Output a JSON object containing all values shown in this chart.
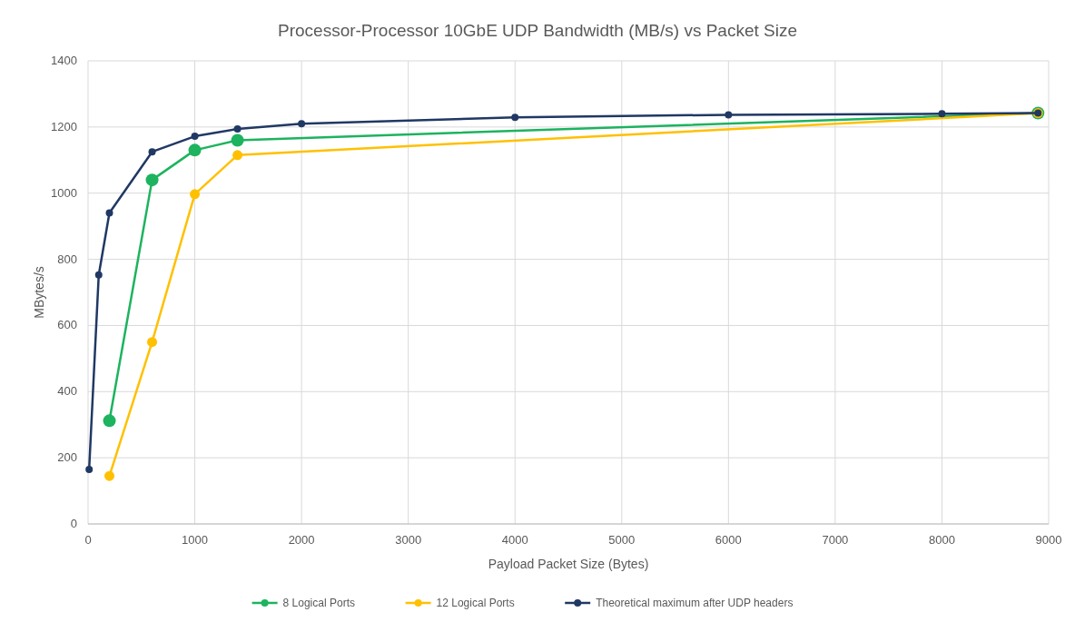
{
  "chart_data": {
    "type": "line",
    "title": "Processor-Processor  10GbE UDP Bandwidth (MB/s) vs Packet Size",
    "xlabel": "Payload Packet Size (Bytes)",
    "ylabel": "MBytes/s",
    "xlim": [
      0,
      9000
    ],
    "xticks": [
      0,
      1000,
      2000,
      3000,
      4000,
      5000,
      6000,
      7000,
      8000,
      9000
    ],
    "ylim": [
      0,
      1400
    ],
    "yticks": [
      0,
      200,
      400,
      600,
      800,
      1000,
      1200,
      1400
    ],
    "grid": true,
    "legend": "bottom",
    "marker": "circle",
    "line_style": "solid",
    "series": [
      {
        "name": "8 Logical Ports",
        "color": "#1db35f",
        "x": [
          200,
          600,
          1000,
          1400,
          8900
        ],
        "values": [
          312,
          1040,
          1130,
          1160,
          1242
        ]
      },
      {
        "name": "12 Logical Ports",
        "color": "#ffc000",
        "x": [
          200,
          600,
          1000,
          1400,
          8900
        ],
        "values": [
          145,
          550,
          997,
          1115,
          1242
        ]
      },
      {
        "name": "Theoretical maximum after UDP headers",
        "color": "#203864",
        "x": [
          10,
          100,
          200,
          600,
          1000,
          1400,
          2000,
          4000,
          6000,
          8000,
          8900
        ],
        "values": [
          165,
          753,
          940,
          1125,
          1172,
          1194,
          1210,
          1229,
          1237,
          1240,
          1242
        ]
      }
    ]
  }
}
